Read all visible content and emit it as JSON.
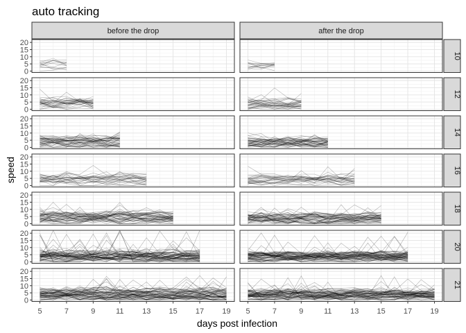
{
  "chart_data": {
    "type": "line",
    "title": "auto tracking",
    "xlabel": "days post infection",
    "ylabel": "speed",
    "xlim": [
      4.4,
      19.6
    ],
    "ylim": [
      -1,
      22
    ],
    "x_ticks": [
      5,
      7,
      9,
      11,
      13,
      15,
      17,
      19
    ],
    "x_tick_labels": [
      "5",
      "7",
      "9",
      "11",
      "13",
      "15",
      "17",
      "19"
    ],
    "y_ticks": [
      0,
      5,
      10,
      15,
      20
    ],
    "y_tick_labels": [
      "0",
      "5",
      "10",
      "15",
      "20"
    ],
    "grid": true,
    "columns": [
      "before the drop",
      "after the drop"
    ],
    "rows": [
      {
        "label": "10",
        "x_end": 7,
        "n_lines": 12,
        "peak": 11
      },
      {
        "label": "12",
        "x_end": 9,
        "n_lines": 28,
        "peak": 16
      },
      {
        "label": "14",
        "x_end": 11,
        "n_lines": 40,
        "peak": 12
      },
      {
        "label": "16",
        "x_end": 13,
        "n_lines": 24,
        "peak": 14
      },
      {
        "label": "18",
        "x_end": 15,
        "n_lines": 44,
        "peak": 15
      },
      {
        "label": "20",
        "x_end": 17,
        "n_lines": 60,
        "peak": 22
      },
      {
        "label": "21",
        "x_end": 19,
        "n_lines": 60,
        "peak": 17
      }
    ],
    "line_color": "#000000",
    "line_opacity": 0.3
  }
}
